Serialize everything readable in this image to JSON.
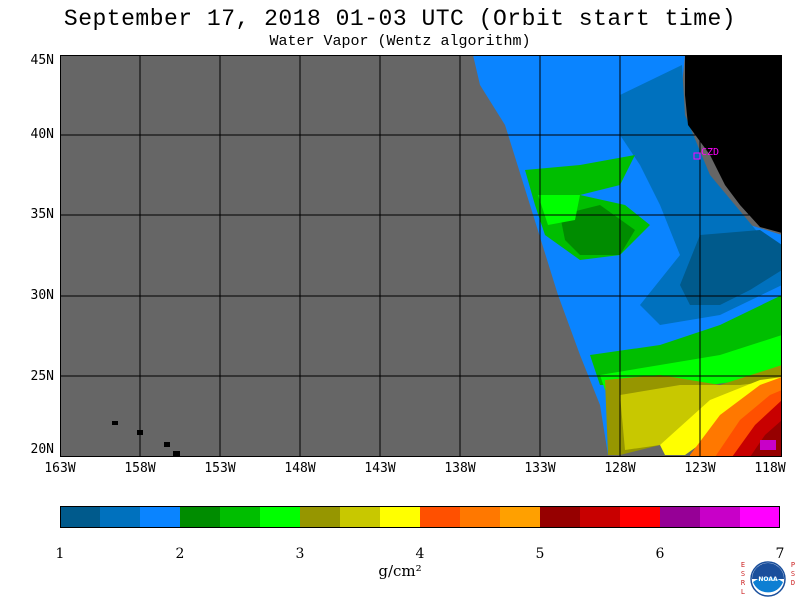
{
  "header": {
    "title": "September 17, 2018  01-03 UTC  (Orbit start time)",
    "subtitle": "Water Vapor (Wentz algorithm)"
  },
  "map": {
    "lat_labels": [
      "45N",
      "40N",
      "35N",
      "30N",
      "25N",
      "20N"
    ],
    "lon_labels": [
      "163W",
      "158W",
      "153W",
      "148W",
      "143W",
      "138W",
      "133W",
      "128W",
      "123W",
      "118W"
    ],
    "station_label": "CZD",
    "colors": {
      "no_data": "#666666",
      "land": "#000000",
      "grid": "#000000",
      "station": "#ff00ff"
    }
  },
  "colorbar": {
    "ticks": [
      "1",
      "2",
      "3",
      "4",
      "5",
      "6",
      "7"
    ],
    "units": "g/cm²",
    "colors": [
      "#005a8c",
      "#0071be",
      "#0a84ff",
      "#008c00",
      "#00be00",
      "#00ff00",
      "#969600",
      "#c8c800",
      "#ffff00",
      "#ff5000",
      "#ff7800",
      "#ffa000",
      "#960000",
      "#c80000",
      "#ff0000",
      "#960096",
      "#c800c8",
      "#ff00ff"
    ]
  },
  "logo": {
    "left_letters": "ESRL",
    "right_letters": "PSD",
    "center_text": "NOAA"
  }
}
